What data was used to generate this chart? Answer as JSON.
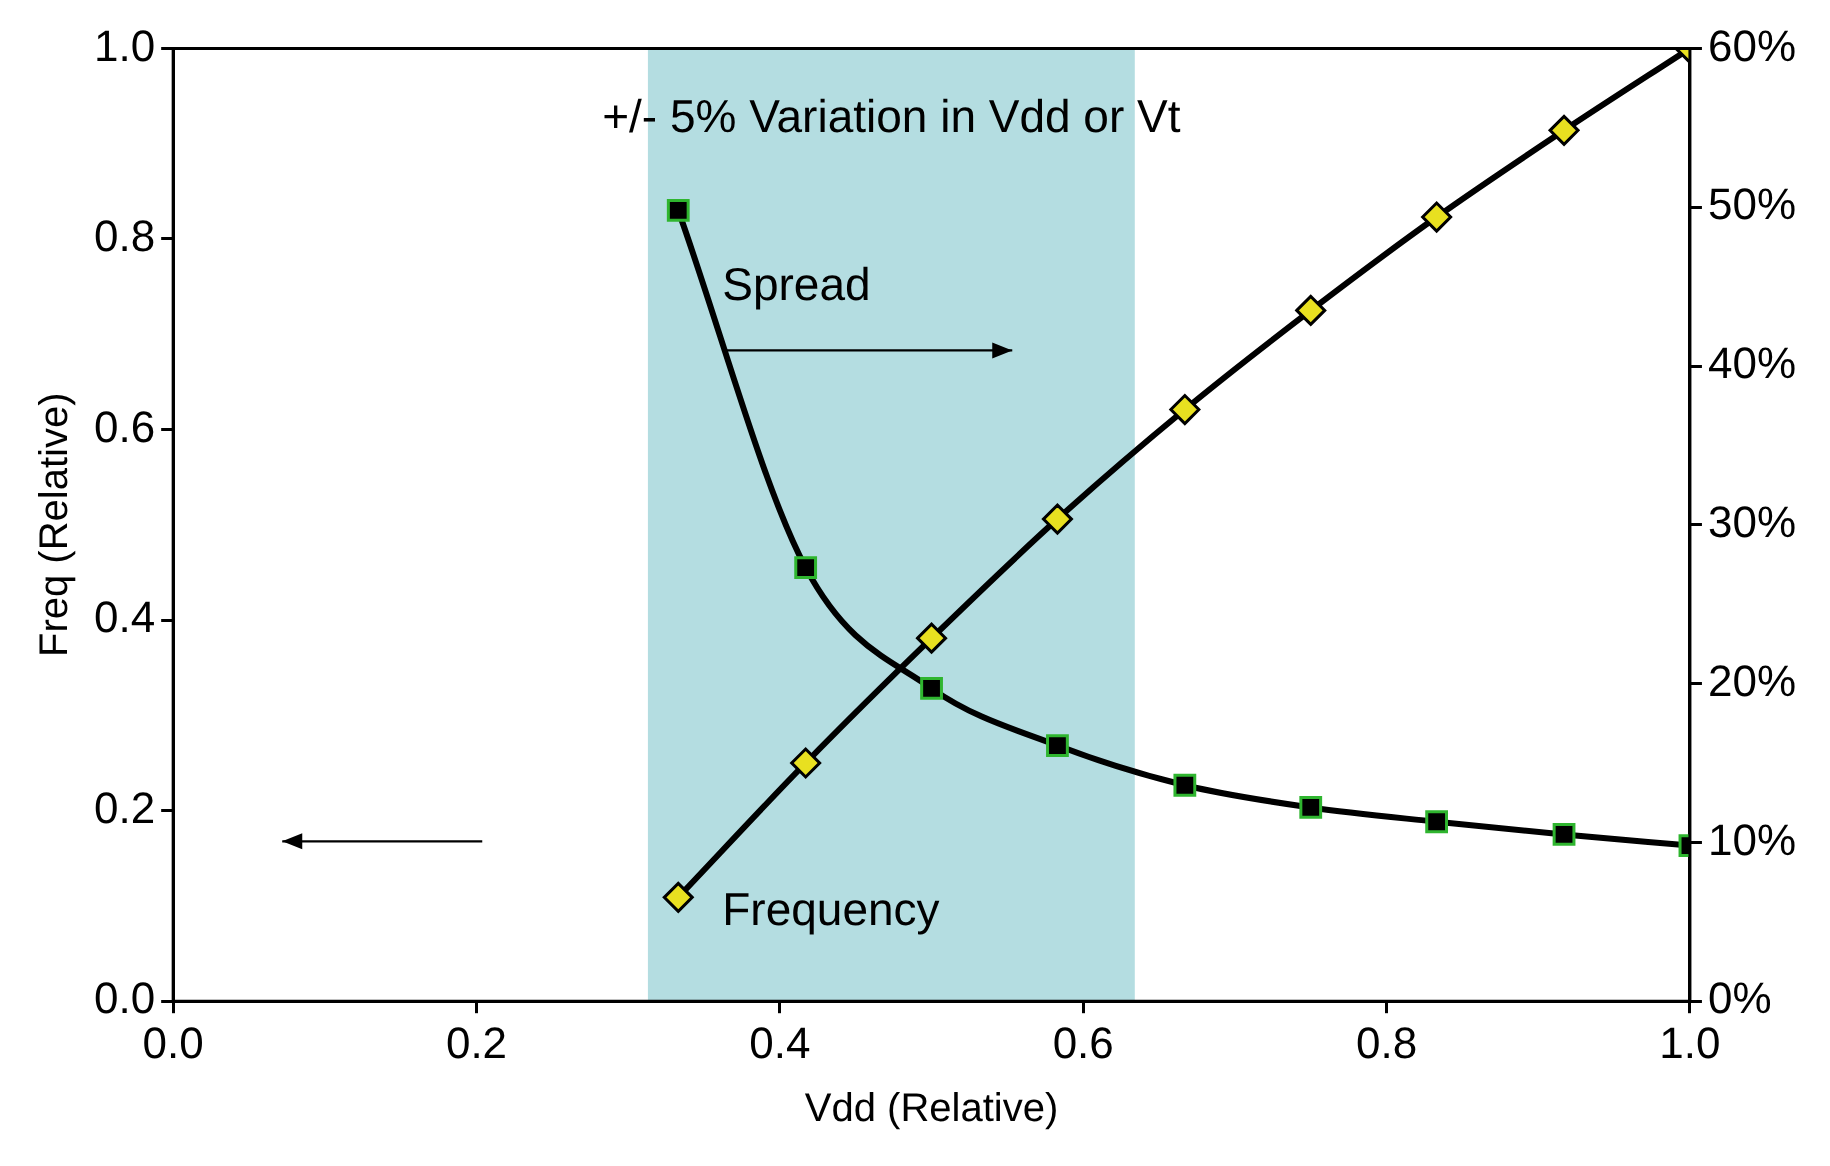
{
  "chart_data": {
    "type": "line",
    "xlabel": "Vdd (Relative)",
    "ylabel": "Freq (Relative)",
    "x": [
      0.333,
      0.417,
      0.5,
      0.583,
      0.667,
      0.75,
      0.833,
      0.917,
      1.0
    ],
    "series": [
      {
        "name": "Spread",
        "color": "#000000",
        "axis": "y2",
        "marker": "square",
        "values": [
          49.8,
          27.3,
          19.7,
          16.1,
          13.6,
          12.2,
          11.3,
          10.5,
          9.8
        ]
      },
      {
        "name": "Frequency",
        "color": "#000000",
        "axis": "y",
        "marker": "diamond",
        "values": [
          0.109,
          0.25,
          0.381,
          0.506,
          0.621,
          0.725,
          0.823,
          0.914,
          1.0
        ]
      }
    ],
    "xlim": [
      0,
      1
    ],
    "xticks": [
      {
        "value": 0,
        "label": "0.0"
      },
      {
        "value": 0.2,
        "label": "0.2"
      },
      {
        "value": 0.4,
        "label": "0.4"
      },
      {
        "value": 0.6,
        "label": "0.6"
      },
      {
        "value": 0.8,
        "label": "0.8"
      },
      {
        "value": 1,
        "label": "1.0"
      }
    ],
    "ylim": [
      0,
      1
    ],
    "yticks": [
      {
        "value": 0,
        "label": "0.0"
      },
      {
        "value": 0.2,
        "label": "0.2"
      },
      {
        "value": 0.4,
        "label": "0.4"
      },
      {
        "value": 0.6,
        "label": "0.6"
      },
      {
        "value": 0.8,
        "label": "0.8"
      },
      {
        "value": 1,
        "label": "1.0"
      }
    ],
    "y2lim": [
      0,
      60
    ],
    "y2ticks": [
      {
        "value": 0,
        "label": "0%"
      },
      {
        "value": 10,
        "label": "10%"
      },
      {
        "value": 20,
        "label": "20%"
      },
      {
        "value": 30,
        "label": "30%"
      },
      {
        "value": 40,
        "label": "40%"
      },
      {
        "value": 50,
        "label": "50%"
      },
      {
        "value": 60,
        "label": "60%"
      }
    ],
    "bands": [
      {
        "axis": "x",
        "from": 0.313,
        "to": 0.634,
        "label": "+/- 5% Variation in Vdd or Vt",
        "color": "#b4dde1"
      }
    ],
    "grid": false,
    "legend": false,
    "line_style": "solid"
  }
}
